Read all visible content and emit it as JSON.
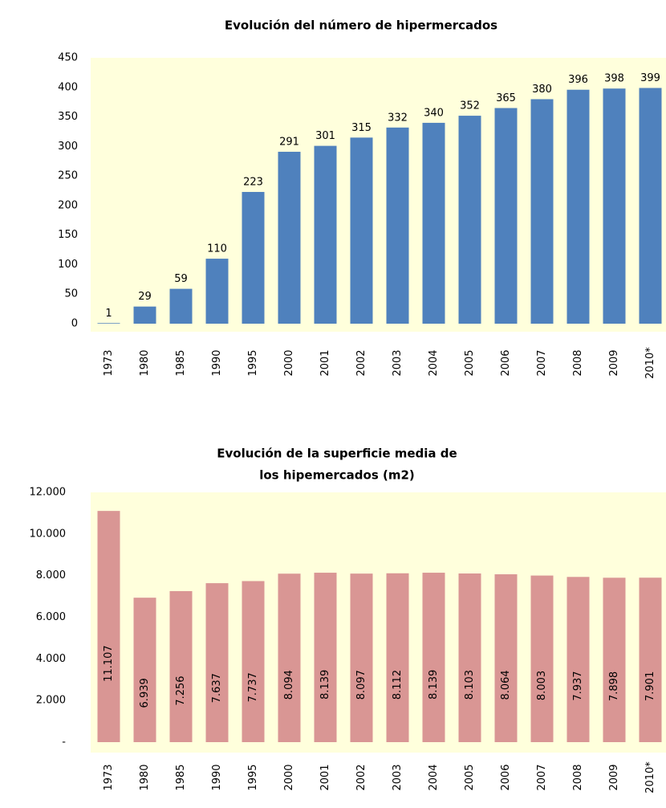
{
  "chart_data": [
    {
      "type": "bar",
      "title": "Evolución del número de hipermercados",
      "categories": [
        "1973",
        "1980",
        "1985",
        "1990",
        "1995",
        "2000",
        "2001",
        "2002",
        "2003",
        "2004",
        "2005",
        "2006",
        "2007",
        "2008",
        "2009",
        "2010*"
      ],
      "values": [
        1,
        29,
        59,
        110,
        223,
        291,
        301,
        315,
        332,
        340,
        352,
        365,
        380,
        396,
        398,
        399
      ],
      "color": "#4f81bd",
      "ylim": [
        0,
        450
      ],
      "yticks": [
        0,
        50,
        100,
        150,
        200,
        250,
        300,
        350,
        400,
        450
      ]
    },
    {
      "type": "bar",
      "title": [
        "Evolución de la superficie media de",
        "los hipemercados (m2)"
      ],
      "categories": [
        "1973",
        "1980",
        "1985",
        "1990",
        "1995",
        "2000",
        "2001",
        "2002",
        "2003",
        "2004",
        "2005",
        "2006",
        "2007",
        "2008",
        "2009",
        "2010*"
      ],
      "values": [
        11107,
        6939,
        7256,
        7637,
        7737,
        8094,
        8139,
        8097,
        8112,
        8139,
        8103,
        8064,
        8003,
        7937,
        7898,
        7901
      ],
      "value_labels": [
        "11.107",
        "6.939",
        "7.256",
        "7.637",
        "7.737",
        "8.094",
        "8.139",
        "8.097",
        "8.112",
        "8.139",
        "8.103",
        "8.064",
        "8.003",
        "7.937",
        "7.898",
        "7.901"
      ],
      "color": "#d99694",
      "ylim": [
        0,
        12000
      ],
      "yticks": [
        {
          "value": 0,
          "label": "-"
        },
        {
          "value": 2000,
          "label": "2.000"
        },
        {
          "value": 4000,
          "label": "4.000"
        },
        {
          "value": 6000,
          "label": "6.000"
        },
        {
          "value": 8000,
          "label": "8.000"
        },
        {
          "value": 10000,
          "label": "10.000"
        },
        {
          "value": 12000,
          "label": "12.000"
        }
      ]
    }
  ]
}
